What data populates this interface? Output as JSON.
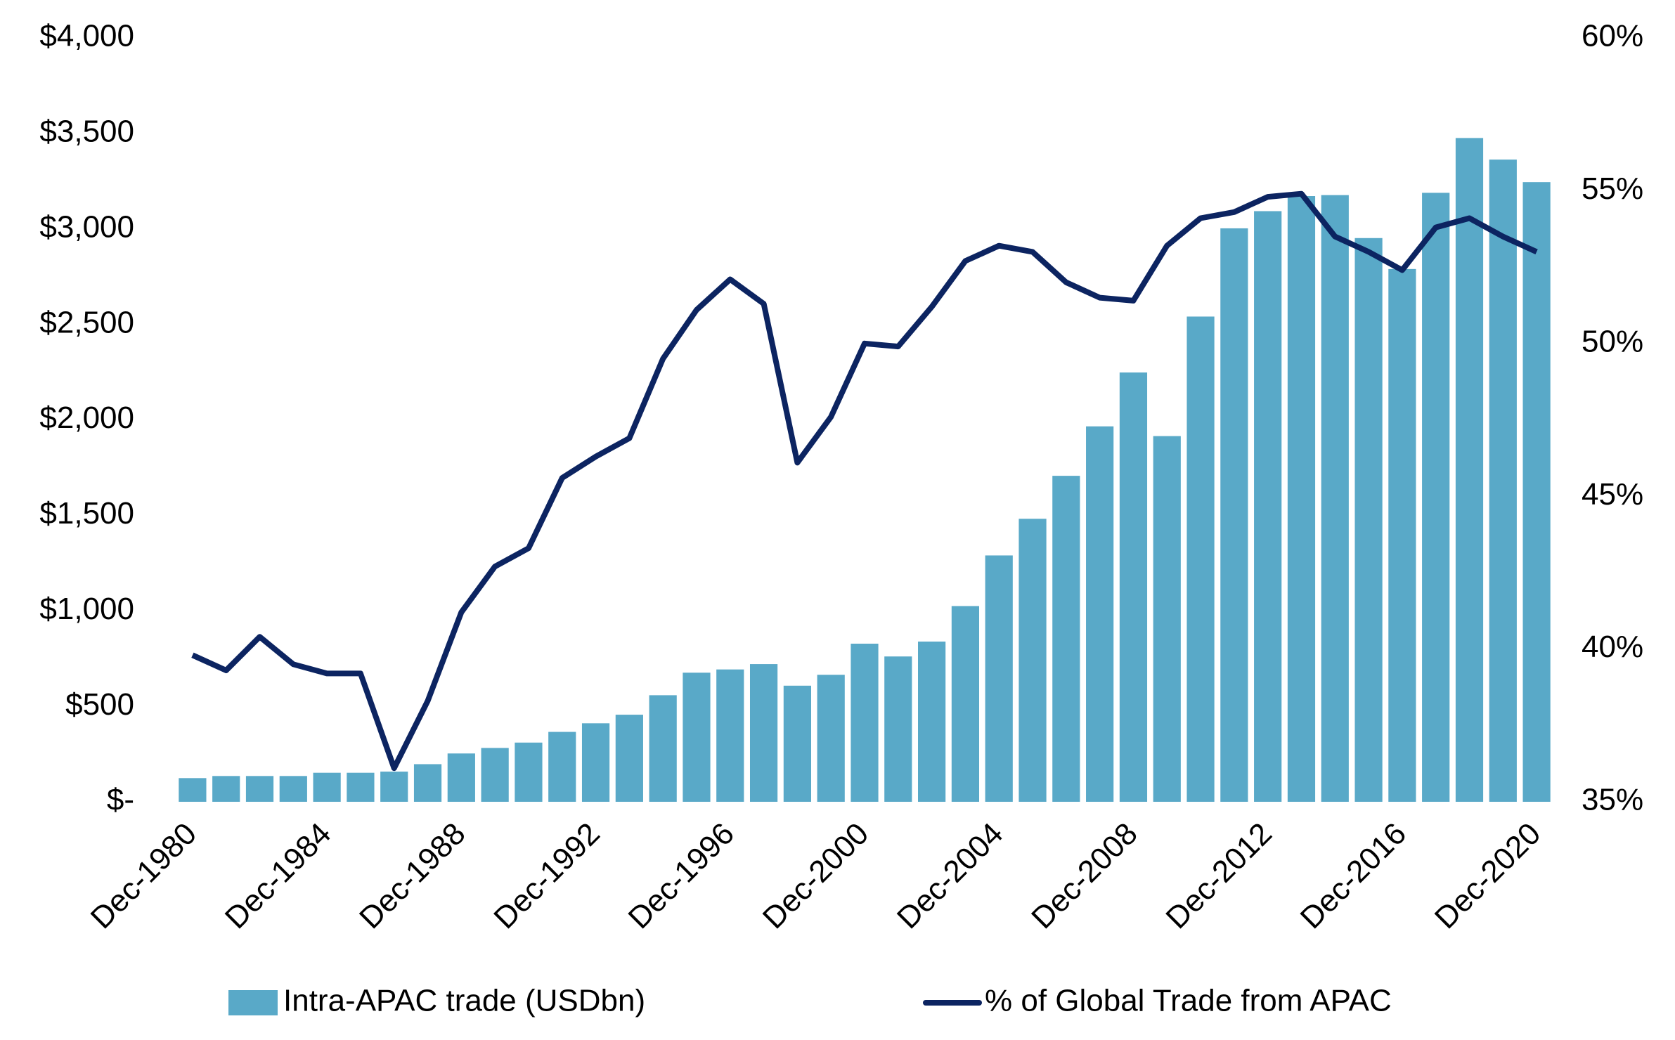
{
  "chart_data": {
    "type": "bar_line",
    "categories": [
      "Dec-1980",
      null,
      null,
      null,
      "Dec-1984",
      null,
      null,
      null,
      "Dec-1988",
      null,
      null,
      null,
      "Dec-1992",
      null,
      null,
      null,
      "Dec-1996",
      null,
      null,
      null,
      "Dec-2000",
      null,
      null,
      null,
      "Dec-2004",
      null,
      null,
      null,
      "Dec-2008",
      null,
      null,
      null,
      "Dec-2012",
      null,
      null,
      null,
      "Dec-2016",
      null,
      null,
      null,
      "Dec-2020"
    ],
    "series": [
      {
        "name": "Intra-APAC trade (USDbn)",
        "type": "bar",
        "color": "#59a9c8",
        "values": [
          124,
          135,
          135,
          135,
          152,
          152,
          158,
          197,
          253,
          282,
          310,
          366,
          411,
          456,
          558,
          676,
          693,
          721,
          608,
          665,
          828,
          761,
          839,
          1025,
          1290,
          1482,
          1707,
          1966,
          2248,
          1915,
          2541,
          3003,
          3093,
          3172,
          3177,
          2952,
          2790,
          3189,
          3476,
          3363,
          3245
        ]
      },
      {
        "name": "% of Global Trade from APAC",
        "type": "line",
        "axis": "y2",
        "color": "#0c2461",
        "values": [
          39.8,
          39.3,
          40.4,
          39.5,
          39.2,
          39.2,
          36.1,
          38.3,
          41.2,
          42.7,
          43.3,
          45.6,
          46.3,
          46.9,
          49.5,
          51.1,
          52.1,
          51.3,
          46.1,
          47.6,
          50.0,
          49.9,
          51.2,
          52.7,
          53.2,
          53.0,
          52.0,
          51.5,
          51.4,
          53.2,
          54.1,
          54.3,
          54.8,
          54.9,
          53.5,
          53.0,
          52.4,
          53.8,
          54.1,
          53.5,
          53.0
        ]
      }
    ],
    "ylim": [
      0,
      4000
    ],
    "yticks": [
      {
        "value": 0,
        "label": "$-"
      },
      {
        "value": 500,
        "label": "$500"
      },
      {
        "value": 1000,
        "label": "$1,000"
      },
      {
        "value": 1500,
        "label": "$1,500"
      },
      {
        "value": 2000,
        "label": "$2,000"
      },
      {
        "value": 2500,
        "label": "$2,500"
      },
      {
        "value": 3000,
        "label": "$3,000"
      },
      {
        "value": 3500,
        "label": "$3,500"
      },
      {
        "value": 4000,
        "label": "$4,000"
      }
    ],
    "y2lim": [
      35,
      60
    ],
    "y2ticks": [
      {
        "value": 35,
        "label": "35%"
      },
      {
        "value": 40,
        "label": "40%"
      },
      {
        "value": 45,
        "label": "45%"
      },
      {
        "value": 50,
        "label": "50%"
      },
      {
        "value": 55,
        "label": "55%"
      },
      {
        "value": 60,
        "label": "60%"
      }
    ],
    "legend": "bottom"
  }
}
